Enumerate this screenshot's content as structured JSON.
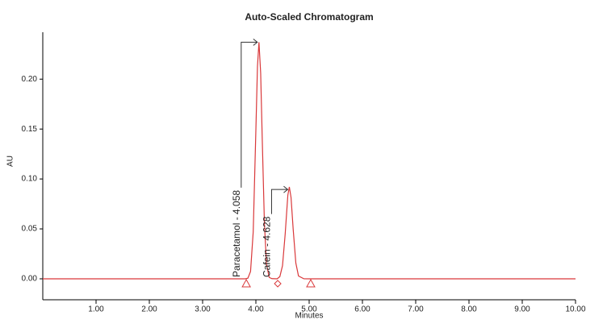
{
  "chart_data": {
    "type": "line",
    "title": "Auto-Scaled Chromatogram",
    "x_label": "Minutes",
    "y_label": "AU",
    "x": [
      0,
      3.8,
      3.85,
      3.9,
      3.95,
      4.0,
      4.03,
      4.058,
      4.09,
      4.12,
      4.16,
      4.2,
      4.25,
      4.3,
      4.4,
      4.45,
      4.5,
      4.55,
      4.6,
      4.628,
      4.66,
      4.7,
      4.75,
      4.8,
      4.9,
      5.0,
      10
    ],
    "series": [
      {
        "name": "Chromatogram",
        "color": "#d9383a",
        "values": [
          0,
          0,
          0.0006,
          0.0074,
          0.047,
          0.149,
          0.213,
          0.237,
          0.206,
          0.139,
          0.056,
          0.0144,
          0.0014,
          0.0002,
          0,
          0.0022,
          0.0132,
          0.0448,
          0.0838,
          0.092,
          0.0815,
          0.0498,
          0.0158,
          0.0028,
          0.0001,
          0,
          0
        ]
      }
    ],
    "xlim": [
      0,
      10
    ],
    "ylim": [
      -0.021,
      0.247
    ],
    "xticks": [
      {
        "value": 1,
        "label": "1.00"
      },
      {
        "value": 2,
        "label": "2.00"
      },
      {
        "value": 3,
        "label": "3.00"
      },
      {
        "value": 4,
        "label": "4.00"
      },
      {
        "value": 5,
        "label": "5.00"
      },
      {
        "value": 6,
        "label": "6.00"
      },
      {
        "value": 7,
        "label": "7.00"
      },
      {
        "value": 8,
        "label": "8.00"
      },
      {
        "value": 9,
        "label": "9.00"
      },
      {
        "value": 10,
        "label": "10.00"
      }
    ],
    "yticks": [
      {
        "value": 0,
        "label": "0.00"
      },
      {
        "value": 0.05,
        "label": "0.05"
      },
      {
        "value": 0.1,
        "label": "0.10"
      },
      {
        "value": 0.15,
        "label": "0.15"
      },
      {
        "value": 0.2,
        "label": "0.20"
      }
    ],
    "annotations": [
      {
        "text": "Paracetamol - 4.058",
        "x": 4.058,
        "y": 0.237
      },
      {
        "text": "Cafein - 4.628",
        "x": 4.628,
        "y": 0.0895
      }
    ],
    "baseline_markers": [
      {
        "x": 3.82,
        "shape": "triangle"
      },
      {
        "x": 4.41,
        "shape": "diamond"
      },
      {
        "x": 5.03,
        "shape": "triangle"
      }
    ]
  }
}
